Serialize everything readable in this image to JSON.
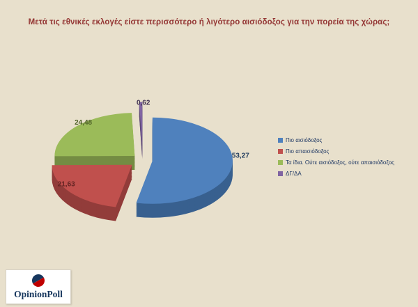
{
  "background": "#e8e0cc",
  "title": {
    "text": "Μετά τις εθνικές εκλογές είστε περισσότερο ή λιγότερο αισιόδοξος για την πορεία της χώρας;",
    "color": "#943634"
  },
  "chart_data": {
    "type": "pie",
    "style": "3d-exploded",
    "title": "Μετά τις εθνικές εκλογές είστε περισσότερο ή λιγότερο αισιόδοξος για την πορεία της χώρας;",
    "labels": [
      "Πιο αισιόδοξος",
      "Πιο απαισιόδοξος",
      "Τα ίδια. Ούτε αισιόδοξος, ούτε απαισιόδοξος",
      "ΔΓ/ΔΑ"
    ],
    "values": [
      53.27,
      21.63,
      24.48,
      0.62
    ],
    "value_labels": [
      "53,27",
      "21,63",
      "24,48",
      "0,62"
    ],
    "colors": [
      "#4f81bd",
      "#c0504d",
      "#9bbb59",
      "#8064a2"
    ],
    "side_colors": [
      "#38608f",
      "#923c3a",
      "#748c43",
      "#5f4a78"
    ],
    "label_colors": [
      "#254061",
      "#632423",
      "#4f6228",
      "#3f3151"
    ],
    "legend_position": "right",
    "start_angle_deg": 0,
    "clockwise": true
  },
  "legend": {
    "text_color": "#1f3864"
  },
  "logo": {
    "text": "OpinionPoll",
    "text_color": "#17375e",
    "circle_top_color": "#17375e",
    "circle_bottom_color": "#c00000"
  }
}
